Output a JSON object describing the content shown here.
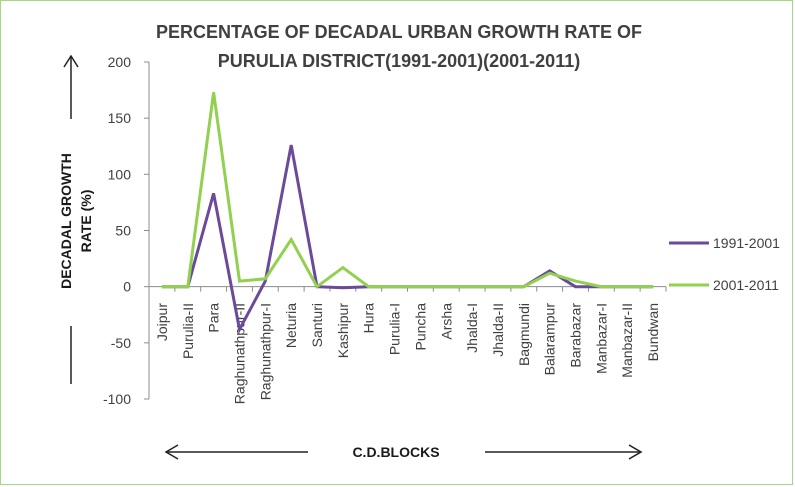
{
  "chart_data": {
    "type": "line",
    "title_line1": "PERCENTAGE OF DECADAL URBAN GROWTH RATE OF",
    "title_line2": "PURULIA DISTRICT(1991-2001)(2001-2011)",
    "ylabel_line1": "DECADAL GROWTH",
    "ylabel_line2": "RATE (%)",
    "xlabel": "C.D.BLOCKS",
    "ylim": [
      -100,
      200
    ],
    "yticks": [
      "200",
      "150",
      "100",
      "50",
      "0",
      "-50",
      "-100"
    ],
    "ytick_values": [
      200,
      150,
      100,
      50,
      0,
      -50,
      -100
    ],
    "grid": false,
    "legend_position": "right",
    "categories": [
      "Joipur",
      "Purulia-II",
      "Para",
      "Raghunathpur-II",
      "Raghunathpur-I",
      "Neturia",
      "Santuri",
      "Kashipur",
      "Hura",
      "Purulia-I",
      "Puncha",
      "Arsha",
      "Jhalda-I",
      "Jhalda-II",
      "Bagmundi",
      "Balarampur",
      "Barabazar",
      "Manbazar-I",
      "Manbazar-II",
      "Bundwan"
    ],
    "series": [
      {
        "name": "1991-2001",
        "color": "#6b4a9a",
        "values": [
          0,
          0,
          83,
          -38,
          5,
          126,
          0,
          -1,
          0,
          0,
          0,
          0,
          0,
          0,
          0,
          14,
          0,
          0,
          0,
          0
        ]
      },
      {
        "name": "2001-2011",
        "color": "#92d050",
        "values": [
          0,
          0,
          173,
          5,
          7,
          42,
          0,
          17,
          0,
          0,
          0,
          0,
          0,
          0,
          0,
          12,
          5,
          0,
          0,
          0
        ]
      }
    ]
  }
}
